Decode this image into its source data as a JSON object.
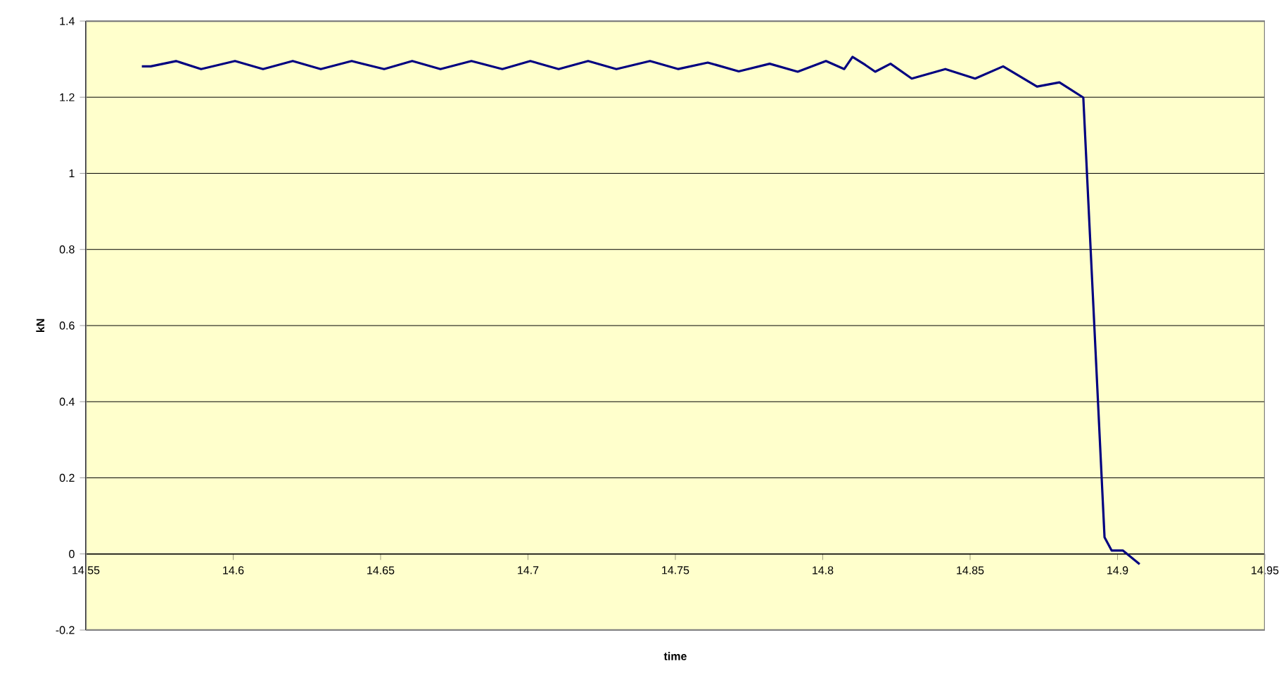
{
  "chart_data": {
    "type": "line",
    "xlabel": "time",
    "ylabel": "kN",
    "xlim": [
      14.55,
      14.95
    ],
    "ylim": [
      -0.2,
      1.4
    ],
    "xticks": [
      14.55,
      14.6,
      14.65,
      14.7,
      14.75,
      14.8,
      14.85,
      14.9,
      14.95
    ],
    "yticks": [
      -0.2,
      0,
      0.2,
      0.4,
      0.6,
      0.8,
      1,
      1.2,
      1.4
    ],
    "grid": "y",
    "marker": "none",
    "line_style": "solid",
    "series": [
      {
        "color": "#000080",
        "x": [
          14.569,
          14.572,
          14.5806,
          14.5891,
          14.6006,
          14.6101,
          14.6202,
          14.6297,
          14.6402,
          14.6512,
          14.6607,
          14.6703,
          14.6808,
          14.6913,
          14.7008,
          14.7104,
          14.7204,
          14.73,
          14.7414,
          14.751,
          14.761,
          14.7715,
          14.782,
          14.7915,
          14.8011,
          14.8073,
          14.8101,
          14.8144,
          14.8178,
          14.823,
          14.8302,
          14.8416,
          14.8517,
          14.8612,
          14.8727,
          14.8803,
          14.8884,
          14.8956,
          14.898,
          14.9018,
          14.9075
        ],
        "values": [
          1.281,
          1.281,
          1.295,
          1.274,
          1.295,
          1.274,
          1.295,
          1.274,
          1.295,
          1.274,
          1.295,
          1.274,
          1.295,
          1.274,
          1.295,
          1.274,
          1.295,
          1.274,
          1.295,
          1.274,
          1.291,
          1.268,
          1.288,
          1.267,
          1.295,
          1.274,
          1.306,
          1.285,
          1.267,
          1.288,
          1.249,
          1.274,
          1.249,
          1.281,
          1.228,
          1.239,
          1.199,
          0.044,
          0.009,
          0.009,
          -0.027
        ]
      }
    ]
  }
}
